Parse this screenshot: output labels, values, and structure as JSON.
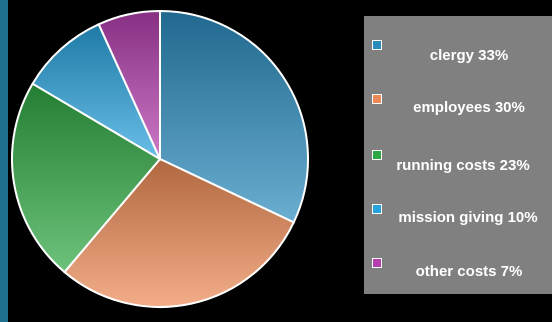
{
  "chart_data": {
    "type": "pie",
    "slices": [
      {
        "label": "clergy 33%",
        "value": 33,
        "color": "#2a8bbd"
      },
      {
        "label": "employees 30%",
        "value": 30,
        "color": "#ec8a55"
      },
      {
        "label": "running costs 23%",
        "value": 23,
        "color": "#2ea843"
      },
      {
        "label": "mission giving 10%",
        "value": 10,
        "color": "#28a2dc"
      },
      {
        "label": "other costs 7%",
        "value": 7,
        "color": "#b43fae"
      }
    ],
    "legend_position": "right"
  }
}
